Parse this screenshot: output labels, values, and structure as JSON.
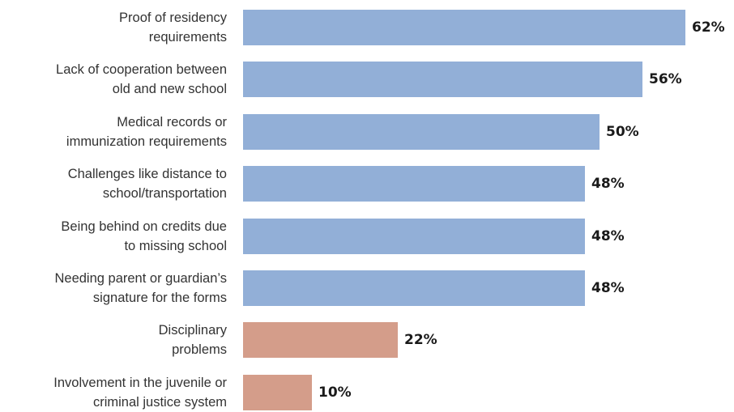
{
  "chart_data": {
    "type": "bar",
    "orientation": "horizontal",
    "categories": [
      [
        "Proof of residency",
        "requirements"
      ],
      [
        "Lack of cooperation between",
        "old and new school"
      ],
      [
        "Medical records or",
        "immunization requirements"
      ],
      [
        "Challenges like distance to",
        "school/transportation"
      ],
      [
        "Being behind on credits due",
        "to missing school"
      ],
      [
        "Needing parent or guardian’s",
        "signature for the forms"
      ],
      [
        "Disciplinary",
        "problems"
      ],
      [
        "Involvement in the juvenile or",
        "criminal justice system"
      ]
    ],
    "values": [
      62,
      56,
      50,
      48,
      48,
      48,
      22,
      10
    ],
    "value_labels": [
      "62%",
      "56%",
      "50%",
      "48%",
      "48%",
      "48%",
      "22%",
      "10%"
    ],
    "bar_colors": [
      "#92afd7",
      "#92afd7",
      "#92afd7",
      "#92afd7",
      "#92afd7",
      "#92afd7",
      "#d49d8a",
      "#d49d8a"
    ],
    "xlim": [
      0,
      100
    ],
    "grid": false,
    "legend": "none"
  }
}
